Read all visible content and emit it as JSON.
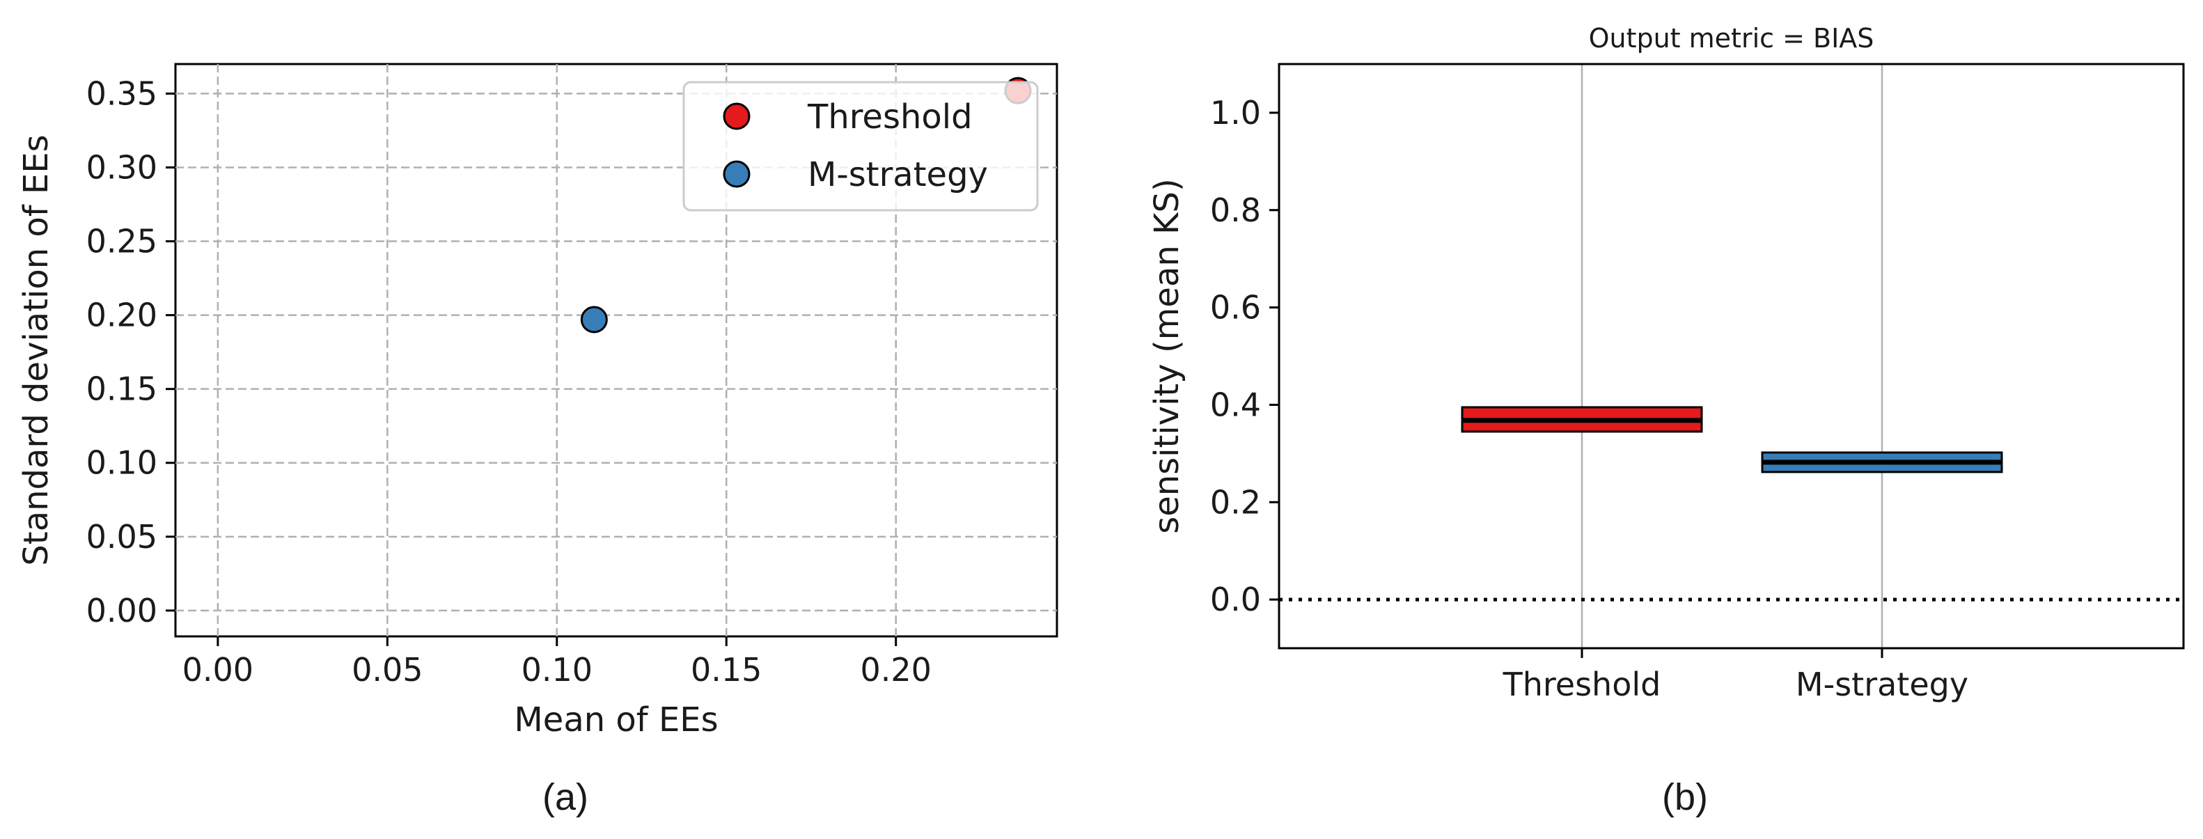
{
  "chart_data": [
    {
      "type": "scatter",
      "panel_label": "(a)",
      "title": "",
      "xlabel": "Mean of EEs",
      "ylabel": "Standard deviation of EEs",
      "xlim": [
        -0.0125,
        0.2475
      ],
      "ylim": [
        -0.0175,
        0.37
      ],
      "xticks": [
        "0.00",
        "0.05",
        "0.10",
        "0.15",
        "0.20"
      ],
      "yticks": [
        "0.00",
        "0.05",
        "0.10",
        "0.15",
        "0.20",
        "0.25",
        "0.30",
        "0.35"
      ],
      "grid": true,
      "legend_position": "top-right",
      "series": [
        {
          "name": "Threshold",
          "color": "#e41a1c",
          "x": [
            0.236
          ],
          "y": [
            0.352
          ]
        },
        {
          "name": "M-strategy",
          "color": "#377eb8",
          "x": [
            0.111
          ],
          "y": [
            0.197
          ]
        }
      ]
    },
    {
      "type": "bar",
      "panel_label": "(b)",
      "title": "Output metric = BIAS",
      "xlabel": "",
      "ylabel": "sensitivity (mean KS)",
      "ylim": [
        -0.1,
        1.1
      ],
      "yticks": [
        "0.0",
        "0.2",
        "0.4",
        "0.6",
        "0.8",
        "1.0"
      ],
      "categories": [
        "Threshold",
        "M-strategy"
      ],
      "grid": "vertical",
      "reference_line": 0.0,
      "boxes": [
        {
          "category": "Threshold",
          "color": "#e41a1c",
          "low": 0.345,
          "high": 0.395,
          "median": 0.368
        },
        {
          "category": "M-strategy",
          "color": "#377eb8",
          "low": 0.262,
          "high": 0.302,
          "median": 0.282
        }
      ]
    }
  ]
}
